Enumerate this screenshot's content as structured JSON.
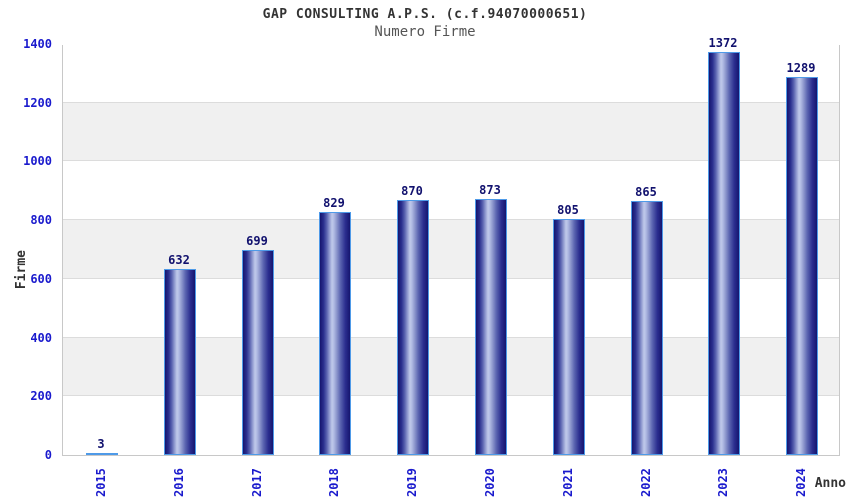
{
  "chart_data": {
    "type": "bar",
    "title": "GAP CONSULTING A.P.S. (c.f.94070000651)",
    "subtitle": "Numero Firme",
    "xlabel": "Anno",
    "ylabel": "Firme",
    "categories": [
      "2015",
      "2016",
      "2017",
      "2018",
      "2019",
      "2020",
      "2021",
      "2022",
      "2023",
      "2024"
    ],
    "values": [
      3,
      632,
      699,
      829,
      870,
      873,
      805,
      865,
      1372,
      1289
    ],
    "ylim": [
      0,
      1400
    ],
    "ytick_step": 200,
    "grid": true,
    "legend": "none",
    "band_colors": [
      "#ffffff",
      "#f0f0f0"
    ],
    "colors": {
      "bar_edge": "#15156f",
      "bar_center": "#c0c9ea",
      "bar_border": "#4e9ae8",
      "tick_label": "#1a1acd",
      "value_label": "#11116e",
      "axis_label": "#333333",
      "title": "#333333",
      "subtitle": "#555555",
      "plot_border": "#c8c8c8",
      "gridline": "#dcdcdc"
    }
  }
}
